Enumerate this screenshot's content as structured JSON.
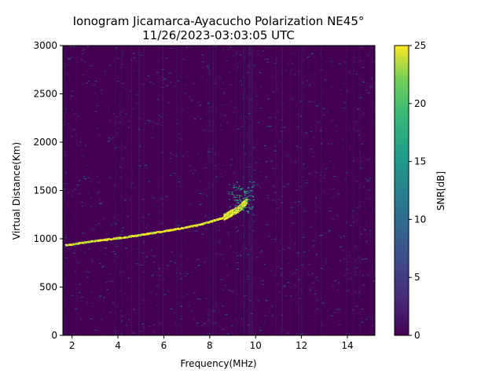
{
  "chart_data": {
    "type": "heatmap",
    "title": "Ionogram Jicamarca-Ayacucho Polarization NE45°",
    "subtitle": "11/26/2023-03:03:05 UTC",
    "xlabel": "Frequency(MHz)",
    "ylabel": "Virtual Distance(Km)",
    "xlim": [
      1.6,
      15.2
    ],
    "ylim": [
      0,
      3000
    ],
    "x_ticks": [
      2,
      4,
      6,
      8,
      10,
      12,
      14
    ],
    "y_ticks": [
      0,
      500,
      1000,
      1500,
      2000,
      2500,
      3000
    ],
    "colorbar": {
      "label": "SNR[dB]",
      "range": [
        0,
        25
      ],
      "ticks": [
        0,
        5,
        10,
        15,
        20,
        25
      ],
      "colormap": "viridis"
    },
    "background_snr": 0,
    "trace": {
      "description_points": [
        {
          "x": 1.7,
          "y": 940
        },
        {
          "x": 3.0,
          "y": 985
        },
        {
          "x": 4.5,
          "y": 1030
        },
        {
          "x": 6.0,
          "y": 1085
        },
        {
          "x": 7.5,
          "y": 1150
        },
        {
          "x": 8.5,
          "y": 1220
        },
        {
          "x": 9.2,
          "y": 1310
        },
        {
          "x": 9.6,
          "y": 1400
        }
      ],
      "snr": 24
    },
    "colors": {
      "viridis_low": "#440154",
      "viridis_mid": "#21918c",
      "viridis_high": "#fde725"
    }
  }
}
